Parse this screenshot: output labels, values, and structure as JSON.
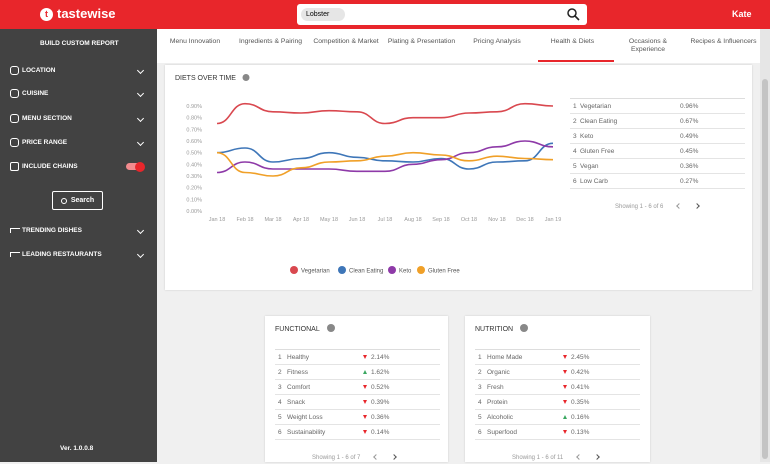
{
  "header": {
    "logo": "tastewise",
    "search_chip": "Lobster",
    "user": "Kate"
  },
  "sidebar": {
    "title": "BUILD CUSTOM REPORT",
    "filters": [
      "LOCATION",
      "CUISINE",
      "MENU SECTION",
      "PRICE RANGE"
    ],
    "include_chains": "INCLUDE CHAINS",
    "search_button": "Search",
    "sections": [
      "TRENDING DISHES",
      "LEADING RESTAURANTS"
    ],
    "version": "Ver. 1.0.0.8"
  },
  "tabs": [
    "Menu Innovation",
    "Ingredients & Pairing",
    "Competition & Market",
    "Plating & Presentation",
    "Pricing Analysis",
    "Health & Diets",
    "Occasions & Experience",
    "Recipes & Influencers"
  ],
  "active_tab": "Health & Diets",
  "chart_data": {
    "type": "line",
    "title": "DIETS OVER TIME",
    "categories": [
      "Jan 18",
      "Feb 18",
      "Mar 18",
      "Apr 18",
      "May 18",
      "Jun 18",
      "Jul 18",
      "Aug 18",
      "Sep 18",
      "Oct 18",
      "Nov 18",
      "Dec 18",
      "Jan 19"
    ],
    "series": [
      {
        "name": "Vegetarian",
        "color": "#d9484f",
        "values": [
          0.75,
          0.92,
          0.85,
          0.84,
          0.86,
          0.85,
          0.75,
          0.8,
          0.8,
          0.84,
          0.85,
          0.92,
          0.9
        ]
      },
      {
        "name": "Clean Eating",
        "color": "#3e76b8",
        "values": [
          0.5,
          0.54,
          0.42,
          0.45,
          0.5,
          0.46,
          0.43,
          0.42,
          0.45,
          0.36,
          0.42,
          0.43,
          0.58
        ]
      },
      {
        "name": "Keto",
        "color": "#8e3aa8",
        "values": [
          0.33,
          0.42,
          0.36,
          0.36,
          0.36,
          0.34,
          0.34,
          0.4,
          0.44,
          0.5,
          0.55,
          0.6,
          0.55
        ]
      },
      {
        "name": "Gluten Free",
        "color": "#f0a028",
        "values": [
          0.5,
          0.33,
          0.3,
          0.37,
          0.42,
          0.43,
          0.47,
          0.5,
          0.48,
          0.43,
          0.47,
          0.45,
          0.44
        ]
      }
    ],
    "ylim": [
      0,
      0.9
    ],
    "yticks": [
      {
        "value": 0,
        "label": "0.00%"
      },
      {
        "value": 0.1,
        "label": "0.10%"
      },
      {
        "value": 0.2,
        "label": "0.20%"
      },
      {
        "value": 0.3,
        "label": "0.30%"
      },
      {
        "value": 0.4,
        "label": "0.40%"
      },
      {
        "value": 0.5,
        "label": "0.50%"
      },
      {
        "value": 0.6,
        "label": "0.60%"
      },
      {
        "value": 0.7,
        "label": "0.70%"
      },
      {
        "value": 0.8,
        "label": "0.80%"
      },
      {
        "value": 0.9,
        "label": "0.90%"
      }
    ],
    "grid": false
  },
  "ranking": {
    "rows": [
      [
        "1",
        "Vegetarian",
        "0.96%"
      ],
      [
        "2",
        "Clean Eating",
        "0.67%"
      ],
      [
        "3",
        "Keto",
        "0.49%"
      ],
      [
        "4",
        "Gluten Free",
        "0.45%"
      ],
      [
        "5",
        "Vegan",
        "0.36%"
      ],
      [
        "6",
        "Low Carb",
        "0.27%"
      ]
    ],
    "footer": "Showing 1 - 6 of 6"
  },
  "functional": {
    "title": "FUNCTIONAL",
    "rows": [
      {
        "rank": "1",
        "name": "Healthy",
        "trend": "down",
        "value": "2.14%"
      },
      {
        "rank": "2",
        "name": "Fitness",
        "trend": "up",
        "value": "1.62%"
      },
      {
        "rank": "3",
        "name": "Comfort",
        "trend": "down",
        "value": "0.52%"
      },
      {
        "rank": "4",
        "name": "Snack",
        "trend": "down",
        "value": "0.39%"
      },
      {
        "rank": "5",
        "name": "Weight Loss",
        "trend": "down",
        "value": "0.36%"
      },
      {
        "rank": "6",
        "name": "Sustainability",
        "trend": "down",
        "value": "0.14%"
      }
    ],
    "footer": "Showing 1 - 6 of 7"
  },
  "nutrition": {
    "title": "NUTRITION",
    "rows": [
      {
        "rank": "1",
        "name": "Home Made",
        "trend": "down",
        "value": "2.45%"
      },
      {
        "rank": "2",
        "name": "Organic",
        "trend": "down",
        "value": "0.42%"
      },
      {
        "rank": "3",
        "name": "Fresh",
        "trend": "down",
        "value": "0.41%"
      },
      {
        "rank": "4",
        "name": "Protein",
        "trend": "down",
        "value": "0.35%"
      },
      {
        "rank": "5",
        "name": "Alcoholic",
        "trend": "up",
        "value": "0.16%"
      },
      {
        "rank": "6",
        "name": "Superfood",
        "trend": "down",
        "value": "0.13%"
      }
    ],
    "footer": "Showing 1 - 6 of 11"
  }
}
